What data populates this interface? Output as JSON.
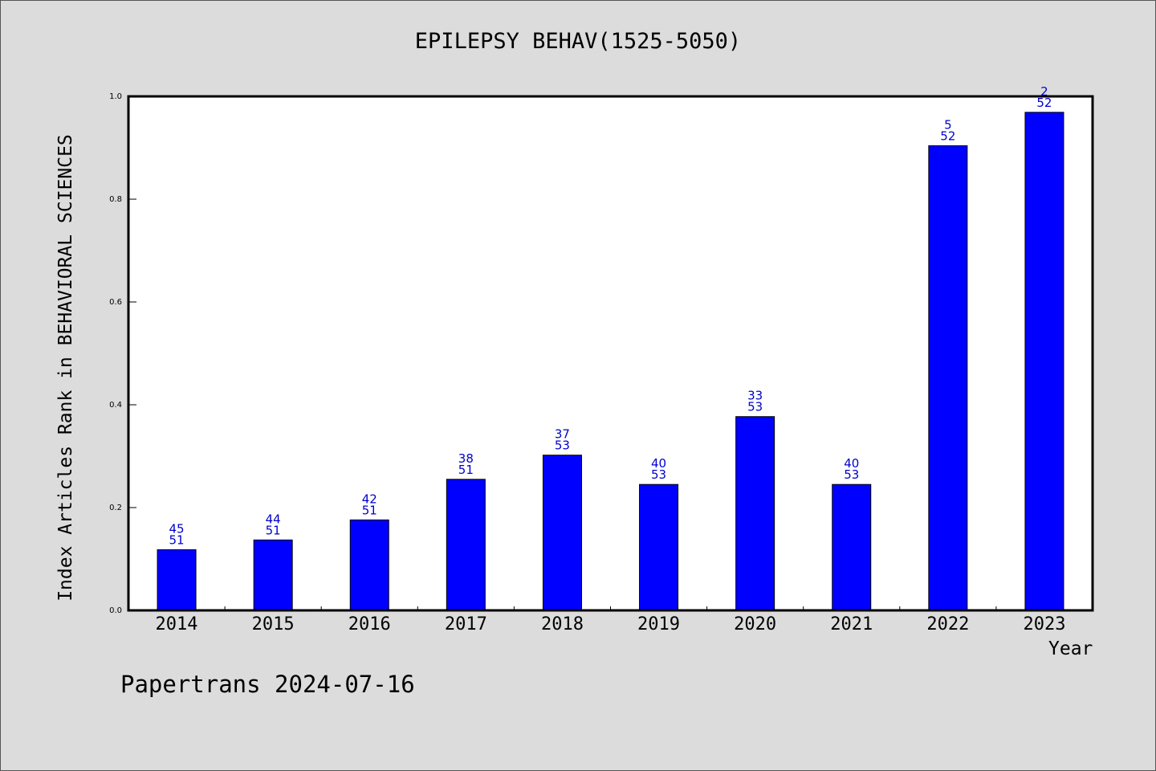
{
  "chart_data": {
    "type": "bar",
    "title": "EPILEPSY BEHAV(1525-5050)",
    "xlabel": "Year",
    "ylabel": "Index Articles Rank in BEHAVIORAL SCIENCES",
    "ylim": [
      0,
      1.0
    ],
    "yticks": [
      "0.0",
      "0.2",
      "0.4",
      "0.6",
      "0.8",
      "1.0"
    ],
    "categories": [
      "2014",
      "2015",
      "2016",
      "2017",
      "2018",
      "2019",
      "2020",
      "2021",
      "2022",
      "2023"
    ],
    "values": [
      0.118,
      0.137,
      0.176,
      0.255,
      0.302,
      0.245,
      0.377,
      0.245,
      0.904,
      0.969
    ],
    "rank": [
      "45",
      "44",
      "42",
      "38",
      "37",
      "40",
      "33",
      "40",
      "5",
      "2"
    ],
    "total": [
      "51",
      "51",
      "51",
      "51",
      "53",
      "53",
      "53",
      "53",
      "52",
      "52"
    ],
    "grid": false,
    "bar_color": "#0000ff",
    "label_color": "#0000cc"
  },
  "footer": "Papertrans 2024-07-16"
}
